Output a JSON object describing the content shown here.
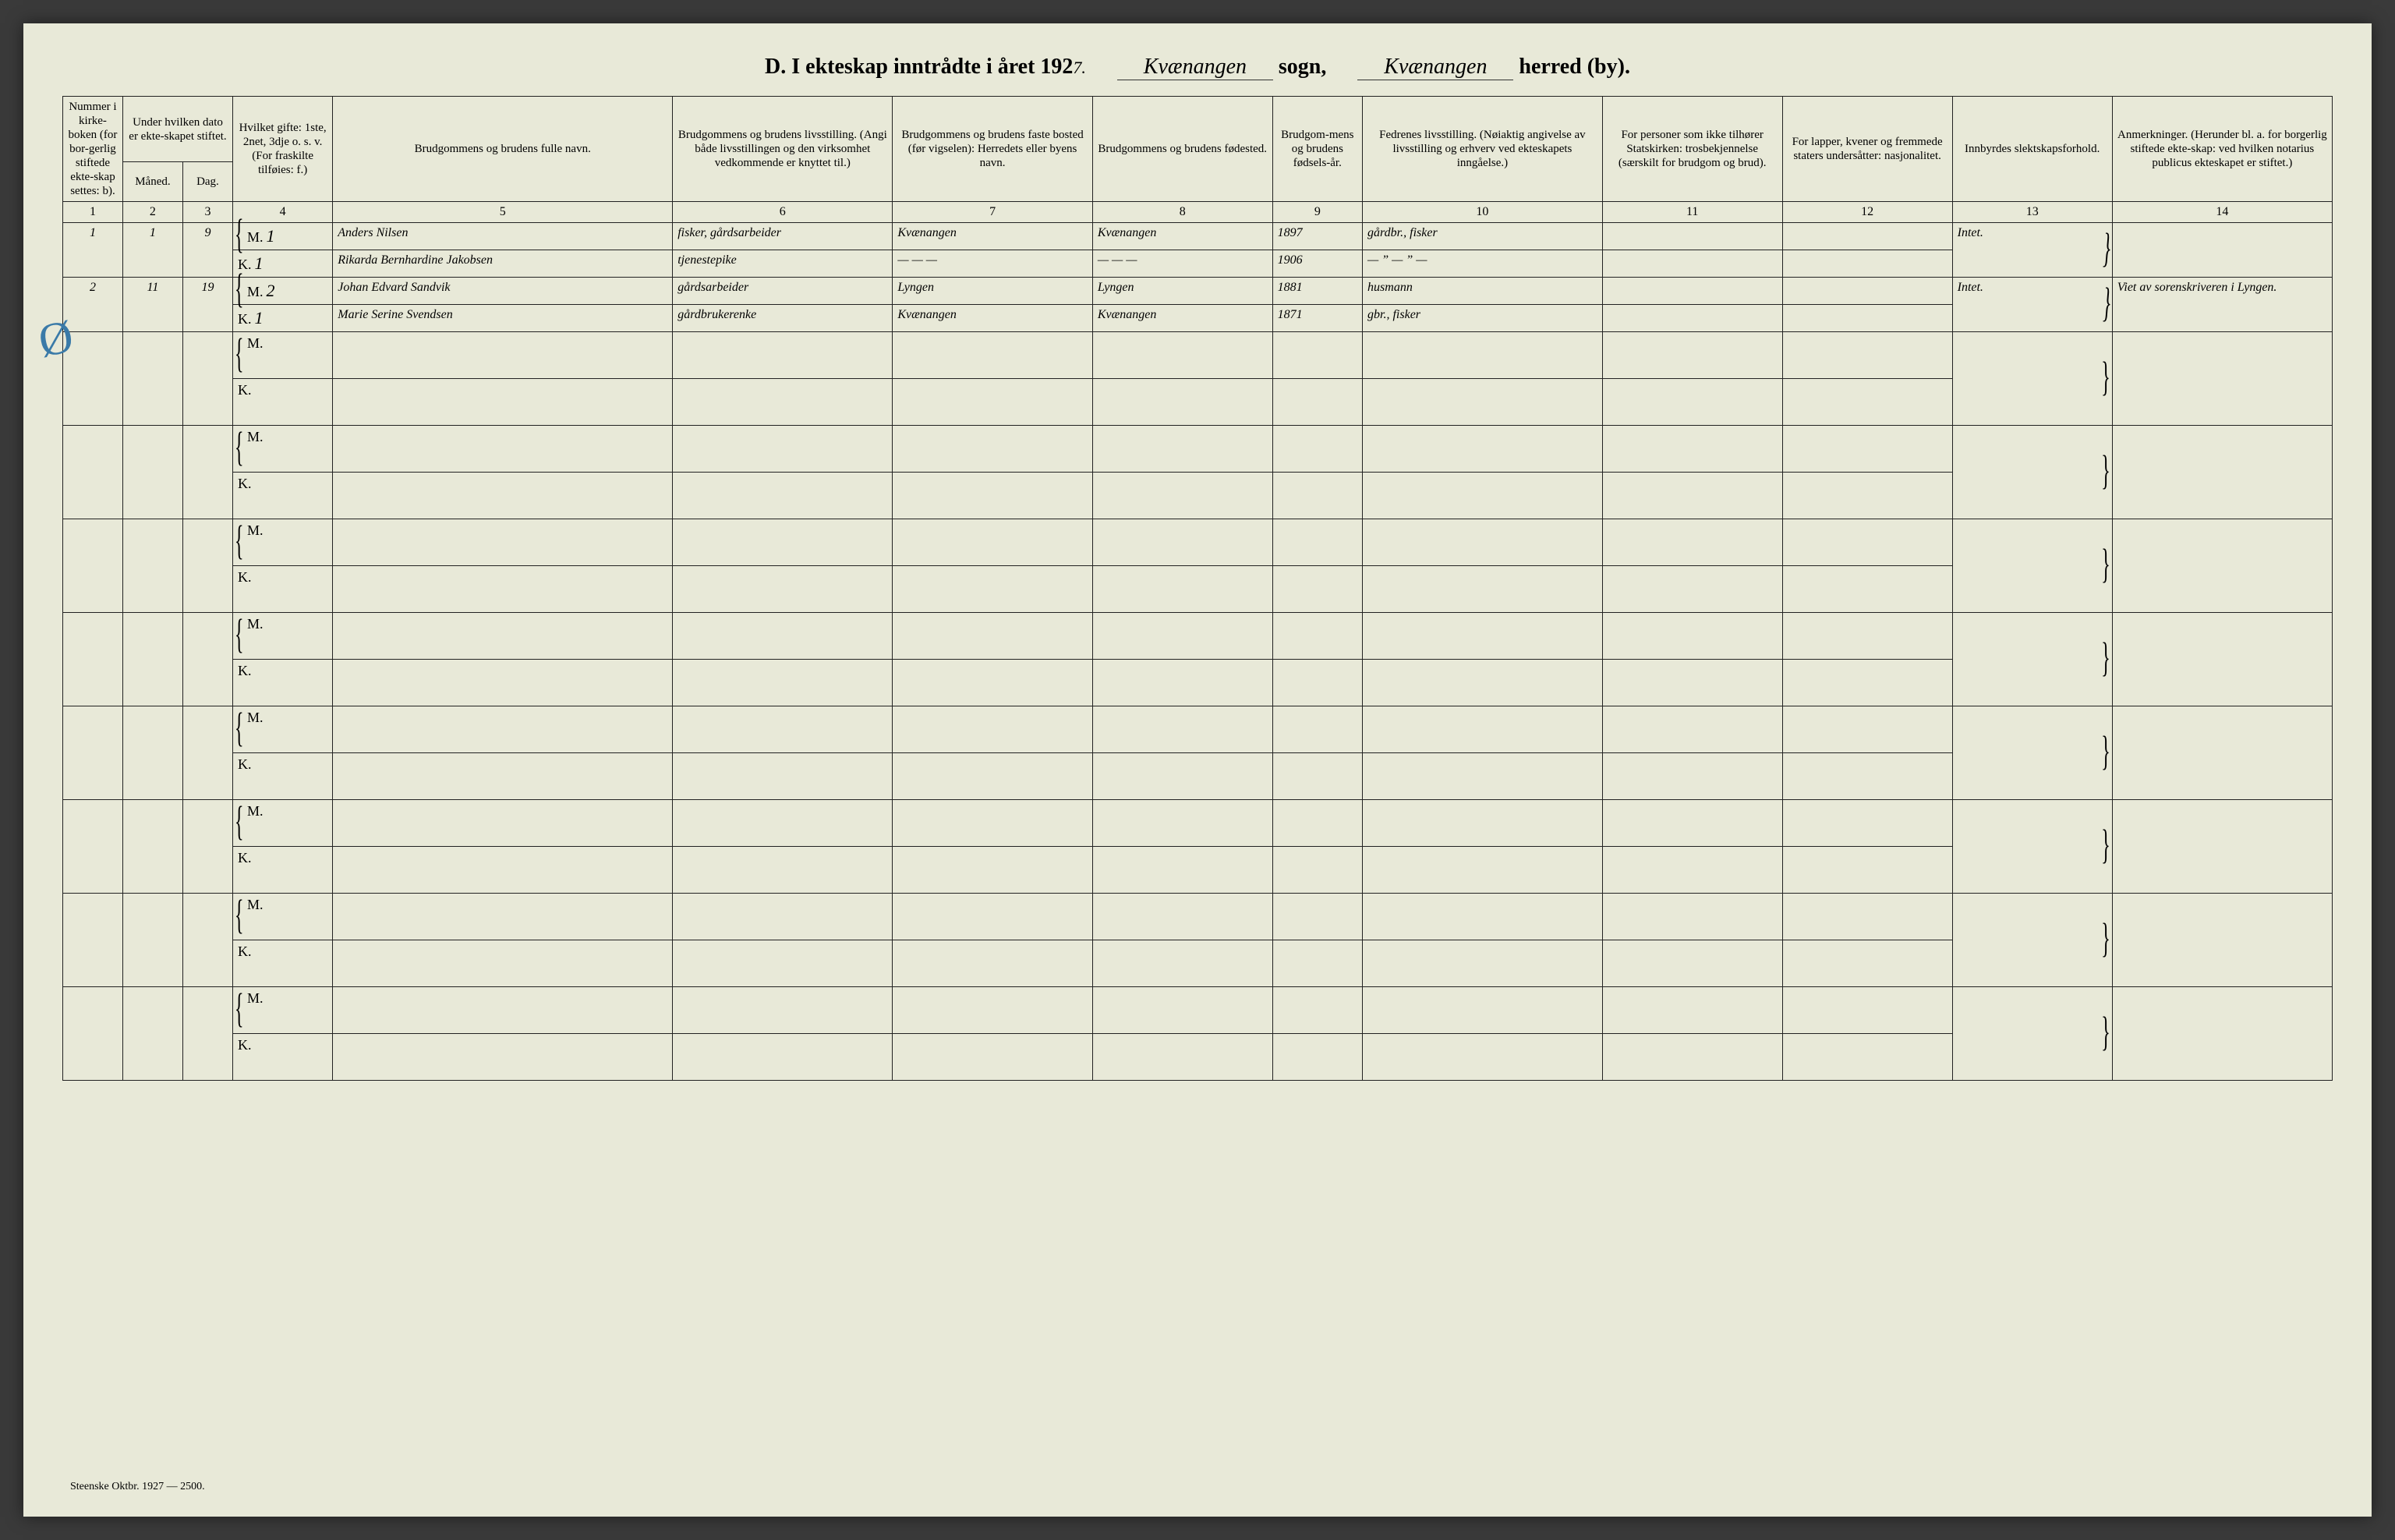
{
  "title": {
    "prefix": "D.  I ekteskap inntrådte i året 192",
    "year_suffix": "7.",
    "sogn_cursive": "Kvænangen",
    "sogn_label": "sogn,",
    "herred_cursive": "Kvænangen",
    "herred_label": "herred (by)."
  },
  "headers": {
    "c1": "Nummer i kirke-boken (for bor-gerlig stiftede ekte-skap settes: b).",
    "c2_top": "Under hvilken dato er ekte-skapet stiftet.",
    "c2a": "Måned.",
    "c2b": "Dag.",
    "c3": "Hvilket gifte: 1ste, 2net, 3dje o. s. v. (For fraskilte tilføies: f.)",
    "c4": "Brudgommens og brudens fulle navn.",
    "c5": "Brudgommens og brudens livsstilling. (Angi både livsstillingen og den virksomhet vedkommende er knyttet til.)",
    "c6": "Brudgommens og brudens faste bosted (før vigselen): Herredets eller byens navn.",
    "c7": "Brudgommens og brudens fødested.",
    "c8": "Brudgom-mens og brudens fødsels-år.",
    "c9": "Fedrenes livsstilling. (Nøiaktig angivelse av livsstilling og erhverv ved ekteskapets inngåelse.)",
    "c10": "For personer som ikke tilhører Statskirken: trosbekjennelse (særskilt for brudgom og brud).",
    "c11": "For lapper, kvener og fremmede staters undersåtter: nasjonalitet.",
    "c12": "Innbyrdes slektskapsforhold.",
    "c13": "Anmerkninger. (Herunder bl. a. for borgerlig stiftede ekte-skap: ved hvilken notarius publicus ekteskapet er stiftet.)"
  },
  "colnums": [
    "1",
    "2",
    "3",
    "4",
    "5",
    "6",
    "7",
    "8",
    "9",
    "10",
    "11",
    "12",
    "13",
    "14"
  ],
  "mk_M": "M.",
  "mk_K": "K.",
  "entries": [
    {
      "num": "1",
      "month": "1",
      "day": "9",
      "m": {
        "gifte": "1",
        "name": "Anders Nilsen",
        "stilling": "fisker, gårdsarbeider",
        "bosted": "Kvænangen",
        "fodested": "Kvænangen",
        "aar": "1897",
        "fedre": "gårdbr., fisker"
      },
      "k": {
        "gifte": "1",
        "name": "Rikarda Bernhardine Jakobsen",
        "stilling": "tjenestepike",
        "bosted": "— — —",
        "fodested": "— — —",
        "aar": "1906",
        "fedre": "— ” — ” —"
      },
      "slekt": "Intet.",
      "anm": ""
    },
    {
      "num": "2",
      "month": "11",
      "day": "19",
      "m": {
        "gifte": "2",
        "name": "Johan Edvard Sandvik",
        "stilling": "gårdsarbeider",
        "bosted": "Lyngen",
        "fodested": "Lyngen",
        "aar": "1881",
        "fedre": "husmann"
      },
      "k": {
        "gifte": "1",
        "name": "Marie Serine Svendsen",
        "stilling": "gårdbrukerenke",
        "bosted": "Kvænangen",
        "fodested": "Kvænangen",
        "aar": "1871",
        "fedre": "gbr., fisker"
      },
      "slekt": "Intet.",
      "anm": "Viet av sorenskriveren i Lyngen."
    }
  ],
  "margin_mark": "Ø",
  "footer": "Steenske  Oktbr. 1927 — 2500."
}
